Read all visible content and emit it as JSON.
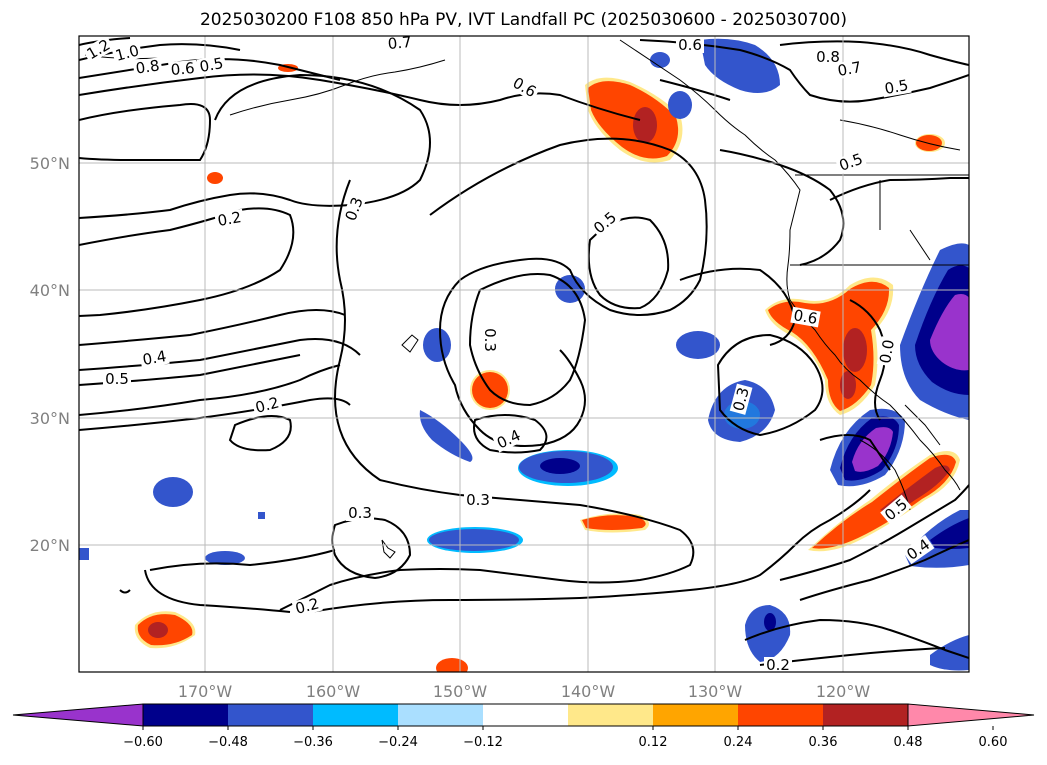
{
  "title": "2025030200 F108 850 hPa PV, IVT Landfall PC (2025030600 - 2025030700)",
  "map": {
    "lat_ticks": [
      "50°N",
      "40°N",
      "30°N",
      "20°N"
    ],
    "lon_ticks": [
      "170°W",
      "160°W",
      "150°W",
      "140°W",
      "130°W",
      "120°W"
    ],
    "contour_labels": [
      "1.2",
      "1.0",
      "0.8",
      "0.6",
      "0.5",
      "0.7",
      "0.6",
      "0.6",
      "0.8",
      "0.7",
      "0.5",
      "0.5",
      "0.2",
      "0.3",
      "0.5",
      "0.4",
      "0.5",
      "0.2",
      "0.3",
      "0.6",
      "0.0",
      "0.3",
      "0.4",
      "0.3",
      "0.3",
      "0.5",
      "0.4",
      "0.2",
      "0.2"
    ]
  },
  "colorbar": {
    "ticks": [
      "−0.60",
      "−0.48",
      "−0.36",
      "−0.24",
      "−0.12",
      "0.12",
      "0.24",
      "0.36",
      "0.48",
      "0.60"
    ],
    "colors": [
      "#9933cc",
      "#00008b",
      "#3355cc",
      "#00bbff",
      "#aadfff",
      "#ffffff",
      "#ffe88a",
      "#ffa500",
      "#ff4500",
      "#b22222",
      "#ff88aa"
    ]
  }
}
